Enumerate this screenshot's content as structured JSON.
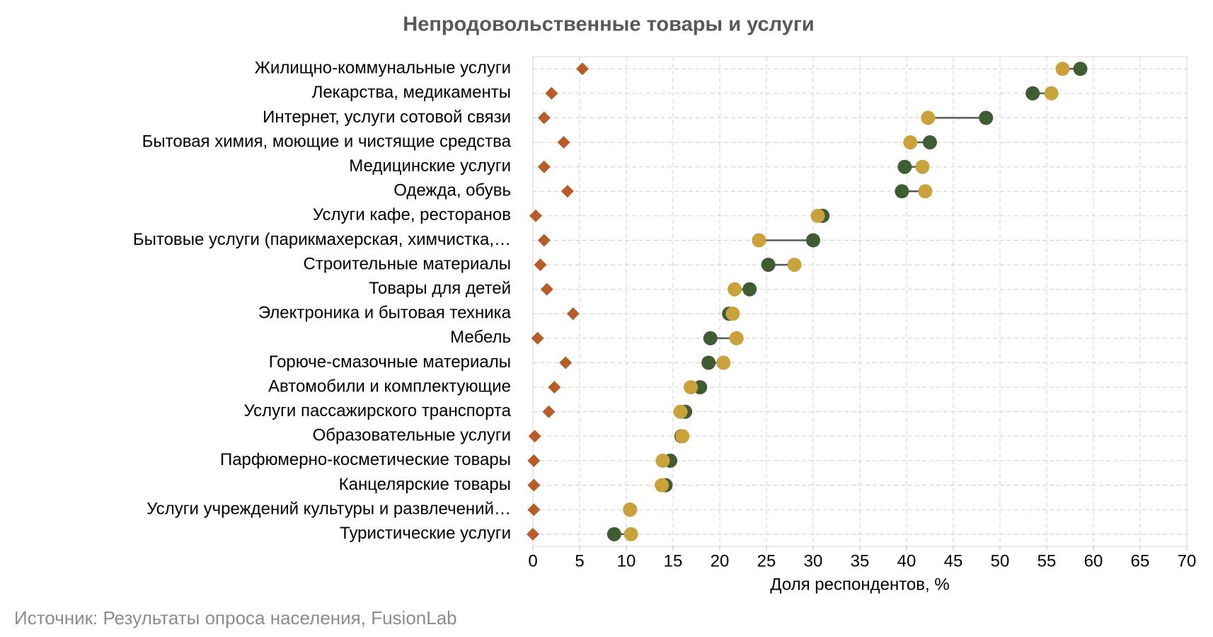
{
  "chart_data": {
    "type": "dumbbell",
    "title": "Непродовольственные товары и услуги",
    "x_label": "Доля респондентов, %",
    "source": "Источник: Результаты опроса населения, FusionLab",
    "categories": [
      "Жилищно-коммунальные услуги",
      "Лекарства, медикаменты",
      "Интернет, услуги сотовой связи",
      "Бытовая химия, моющие и чистящие средства",
      "Медицинские услуги",
      "Одежда, обувь",
      "Услуги кафе, ресторанов",
      "Бытовые услуги (парикмахерская, химчистка,…",
      "Строительные материалы",
      "Товары для детей",
      "Электроника и бытовая техника",
      "Мебель",
      "Горюче-смазочные материалы",
      "Автомобили и комплектующие",
      "Услуги пассажирского транспорта",
      "Образовательные услуги",
      "Парфюмерно-косметические товары",
      "Канцелярские товары",
      "Услуги учреждений культуры и развлечений…",
      "Туристические услуги"
    ],
    "series": [
      {
        "color": "#3e5d33",
        "marker": "circle",
        "values": [
          58.6,
          53.5,
          48.5,
          42.5,
          39.8,
          39.5,
          31.0,
          30.0,
          25.2,
          23.2,
          21.0,
          19.0,
          18.8,
          17.9,
          16.3,
          15.9,
          14.7,
          14.2,
          10.4,
          8.7
        ]
      },
      {
        "color": "#c9a23c",
        "marker": "circle",
        "values": [
          56.7,
          55.5,
          42.3,
          40.4,
          41.7,
          42.0,
          30.5,
          24.2,
          28.0,
          21.6,
          21.4,
          21.8,
          20.4,
          16.9,
          15.8,
          16.0,
          13.9,
          13.8,
          10.4,
          10.5
        ]
      },
      {
        "color": "#b85c2a",
        "marker": "diamond",
        "values": [
          5.3,
          2.0,
          1.2,
          3.3,
          1.2,
          3.7,
          0.3,
          1.2,
          0.8,
          1.5,
          4.3,
          0.5,
          3.5,
          2.3,
          1.7,
          0.2,
          0.1,
          0.1,
          0.1,
          0.0
        ]
      }
    ],
    "connector_color": "#595959",
    "xlim": [
      0,
      70
    ],
    "xticks": [
      0,
      5,
      10,
      15,
      20,
      25,
      30,
      35,
      40,
      45,
      50,
      55,
      60,
      65,
      70
    ],
    "grid": true
  }
}
